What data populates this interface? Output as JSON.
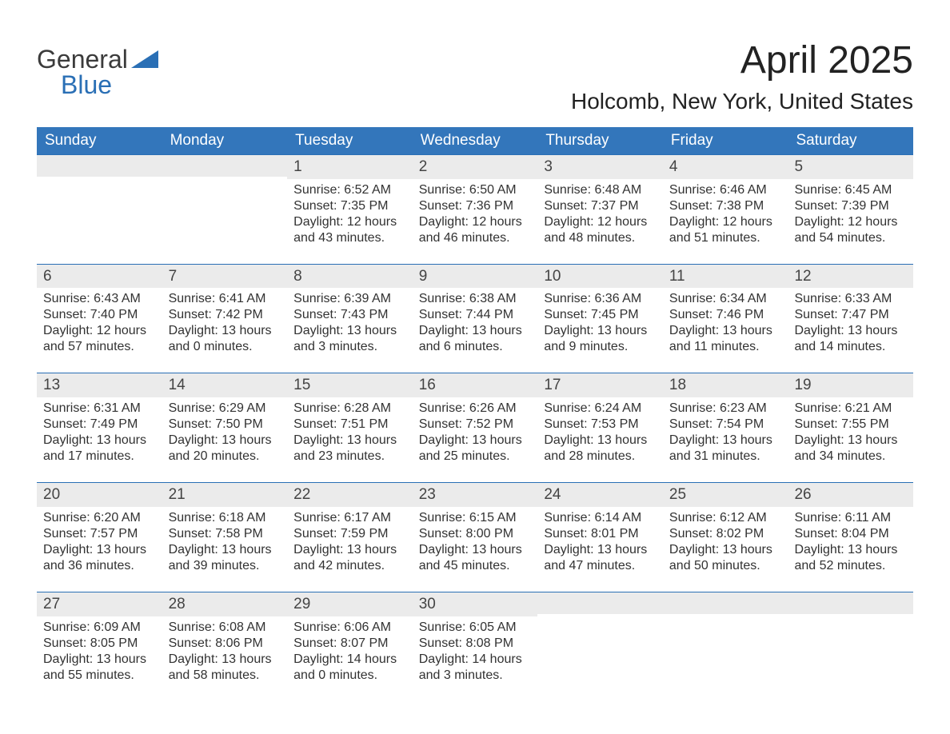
{
  "brand": {
    "line1": "General",
    "line2": "Blue",
    "accent_color": "#2a6fb5"
  },
  "title": "April 2025",
  "location": "Holcomb, New York, United States",
  "colors": {
    "header_bg": "#3376bb",
    "header_text": "#ffffff",
    "week_border": "#2a6fb5",
    "daynum_bg": "#ebebeb",
    "text": "#323232",
    "background": "#ffffff"
  },
  "fonts": {
    "title_size_pt": 36,
    "location_size_pt": 21,
    "header_size_pt": 14,
    "body_size_pt": 12
  },
  "weekdays": [
    "Sunday",
    "Monday",
    "Tuesday",
    "Wednesday",
    "Thursday",
    "Friday",
    "Saturday"
  ],
  "labels": {
    "sunrise_prefix": "Sunrise: ",
    "sunset_prefix": "Sunset: ",
    "daylight_prefix": "Daylight: "
  },
  "weeks": [
    [
      {
        "blank": true
      },
      {
        "blank": true
      },
      {
        "day": "1",
        "sunrise": "6:52 AM",
        "sunset": "7:35 PM",
        "daylight": "12 hours and 43 minutes."
      },
      {
        "day": "2",
        "sunrise": "6:50 AM",
        "sunset": "7:36 PM",
        "daylight": "12 hours and 46 minutes."
      },
      {
        "day": "3",
        "sunrise": "6:48 AM",
        "sunset": "7:37 PM",
        "daylight": "12 hours and 48 minutes."
      },
      {
        "day": "4",
        "sunrise": "6:46 AM",
        "sunset": "7:38 PM",
        "daylight": "12 hours and 51 minutes."
      },
      {
        "day": "5",
        "sunrise": "6:45 AM",
        "sunset": "7:39 PM",
        "daylight": "12 hours and 54 minutes."
      }
    ],
    [
      {
        "day": "6",
        "sunrise": "6:43 AM",
        "sunset": "7:40 PM",
        "daylight": "12 hours and 57 minutes."
      },
      {
        "day": "7",
        "sunrise": "6:41 AM",
        "sunset": "7:42 PM",
        "daylight": "13 hours and 0 minutes."
      },
      {
        "day": "8",
        "sunrise": "6:39 AM",
        "sunset": "7:43 PM",
        "daylight": "13 hours and 3 minutes."
      },
      {
        "day": "9",
        "sunrise": "6:38 AM",
        "sunset": "7:44 PM",
        "daylight": "13 hours and 6 minutes."
      },
      {
        "day": "10",
        "sunrise": "6:36 AM",
        "sunset": "7:45 PM",
        "daylight": "13 hours and 9 minutes."
      },
      {
        "day": "11",
        "sunrise": "6:34 AM",
        "sunset": "7:46 PM",
        "daylight": "13 hours and 11 minutes."
      },
      {
        "day": "12",
        "sunrise": "6:33 AM",
        "sunset": "7:47 PM",
        "daylight": "13 hours and 14 minutes."
      }
    ],
    [
      {
        "day": "13",
        "sunrise": "6:31 AM",
        "sunset": "7:49 PM",
        "daylight": "13 hours and 17 minutes."
      },
      {
        "day": "14",
        "sunrise": "6:29 AM",
        "sunset": "7:50 PM",
        "daylight": "13 hours and 20 minutes."
      },
      {
        "day": "15",
        "sunrise": "6:28 AM",
        "sunset": "7:51 PM",
        "daylight": "13 hours and 23 minutes."
      },
      {
        "day": "16",
        "sunrise": "6:26 AM",
        "sunset": "7:52 PM",
        "daylight": "13 hours and 25 minutes."
      },
      {
        "day": "17",
        "sunrise": "6:24 AM",
        "sunset": "7:53 PM",
        "daylight": "13 hours and 28 minutes."
      },
      {
        "day": "18",
        "sunrise": "6:23 AM",
        "sunset": "7:54 PM",
        "daylight": "13 hours and 31 minutes."
      },
      {
        "day": "19",
        "sunrise": "6:21 AM",
        "sunset": "7:55 PM",
        "daylight": "13 hours and 34 minutes."
      }
    ],
    [
      {
        "day": "20",
        "sunrise": "6:20 AM",
        "sunset": "7:57 PM",
        "daylight": "13 hours and 36 minutes."
      },
      {
        "day": "21",
        "sunrise": "6:18 AM",
        "sunset": "7:58 PM",
        "daylight": "13 hours and 39 minutes."
      },
      {
        "day": "22",
        "sunrise": "6:17 AM",
        "sunset": "7:59 PM",
        "daylight": "13 hours and 42 minutes."
      },
      {
        "day": "23",
        "sunrise": "6:15 AM",
        "sunset": "8:00 PM",
        "daylight": "13 hours and 45 minutes."
      },
      {
        "day": "24",
        "sunrise": "6:14 AM",
        "sunset": "8:01 PM",
        "daylight": "13 hours and 47 minutes."
      },
      {
        "day": "25",
        "sunrise": "6:12 AM",
        "sunset": "8:02 PM",
        "daylight": "13 hours and 50 minutes."
      },
      {
        "day": "26",
        "sunrise": "6:11 AM",
        "sunset": "8:04 PM",
        "daylight": "13 hours and 52 minutes."
      }
    ],
    [
      {
        "day": "27",
        "sunrise": "6:09 AM",
        "sunset": "8:05 PM",
        "daylight": "13 hours and 55 minutes."
      },
      {
        "day": "28",
        "sunrise": "6:08 AM",
        "sunset": "8:06 PM",
        "daylight": "13 hours and 58 minutes."
      },
      {
        "day": "29",
        "sunrise": "6:06 AM",
        "sunset": "8:07 PM",
        "daylight": "14 hours and 0 minutes."
      },
      {
        "day": "30",
        "sunrise": "6:05 AM",
        "sunset": "8:08 PM",
        "daylight": "14 hours and 3 minutes."
      },
      {
        "blank": true
      },
      {
        "blank": true
      },
      {
        "blank": true
      }
    ]
  ]
}
